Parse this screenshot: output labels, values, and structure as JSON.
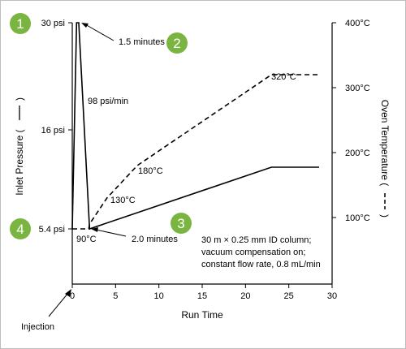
{
  "chart_data": {
    "type": "line",
    "x_axis": {
      "label": "Run Time",
      "range": [
        0,
        30
      ],
      "ticks": [
        0,
        5,
        10,
        15,
        20,
        25,
        30
      ]
    },
    "y_left": {
      "label": "Inlet Pressure (",
      "range": [
        0,
        30
      ],
      "ticks": [
        {
          "value": 30,
          "label": "30 psi"
        },
        {
          "value": 16,
          "label": "16 psi"
        },
        {
          "value": 5.4,
          "label": "5.4 psi"
        }
      ]
    },
    "y_right": {
      "label": "Oven Temperature (",
      "range": [
        0,
        400
      ],
      "ticks": [
        {
          "value": 400,
          "label": "400°C"
        },
        {
          "value": 300,
          "label": "300°C"
        },
        {
          "value": 200,
          "label": "200°C"
        },
        {
          "value": 100,
          "label": "100°C"
        }
      ]
    },
    "series": [
      {
        "axis": "left",
        "style": "solid",
        "color": "#000000",
        "points": [
          [
            0,
            5.4
          ],
          [
            0.5,
            30
          ],
          [
            0.75,
            30
          ],
          [
            2.0,
            5.4
          ],
          [
            23,
            12
          ],
          [
            28.5,
            12
          ]
        ]
      },
      {
        "axis": "right",
        "style": "dashed",
        "color": "#000000",
        "points": [
          [
            0,
            5.4
          ],
          [
            1.9,
            5.4
          ],
          [
            2.0,
            90
          ],
          [
            4.0,
            130
          ],
          [
            7.5,
            180
          ],
          [
            23,
            320
          ],
          [
            28.5,
            320
          ]
        ]
      }
    ],
    "annotations": [
      {
        "text": "1.5 minutes"
      },
      {
        "text": "98 psi/min"
      },
      {
        "text": "320°C"
      },
      {
        "text": "180°C"
      },
      {
        "text": "130°C"
      },
      {
        "text": "90°C"
      },
      {
        "text": "2.0 minutes"
      },
      {
        "text": "Injection"
      }
    ],
    "note_lines": [
      "30 m × 0.25 mm ID column;",
      "vacuum compensation on;",
      "constant flow rate, 0.8 mL/min"
    ],
    "markers": [
      {
        "label": "1"
      },
      {
        "label": "2"
      },
      {
        "label": "3"
      },
      {
        "label": "4"
      }
    ],
    "marker_color": "#7ab542"
  }
}
